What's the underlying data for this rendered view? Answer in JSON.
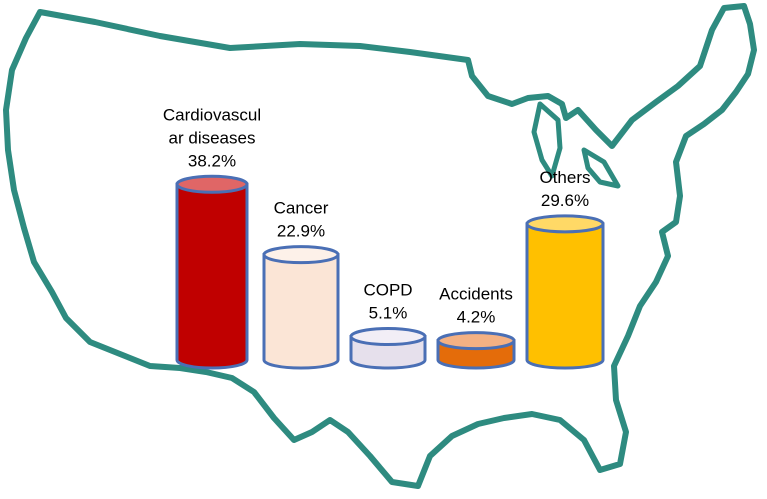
{
  "chart_data": {
    "type": "bar",
    "style": "3d-cylinder",
    "background": "map-outline-usa",
    "categories": [
      "Cardiovascular diseases",
      "Cancer",
      "COPD",
      "Accidents",
      "Others"
    ],
    "values": [
      38.2,
      22.9,
      5.1,
      4.2,
      29.6
    ],
    "unit": "%",
    "labels": [
      [
        "Cardiovascul",
        "ar diseases",
        "38.2%"
      ],
      [
        "Cancer",
        "22.9%"
      ],
      [
        "COPD",
        "5.1%"
      ],
      [
        "Accidents",
        "4.2%"
      ],
      [
        "Others",
        "29.6%"
      ]
    ],
    "colors": [
      "#c00000",
      "#fbe5d6",
      "#e6e0ec",
      "#e46c0a",
      "#ffc000"
    ],
    "top_colors": [
      "#e06666",
      "#fdf1e9",
      "#f2eef6",
      "#f4b183",
      "#ffd966"
    ],
    "edge_color": "#4a6fb5",
    "outline_color": "#2e8b80",
    "title": "",
    "xlabel": "",
    "ylabel": "",
    "ylim": [
      0,
      40
    ],
    "grid": false,
    "legend": "none"
  }
}
